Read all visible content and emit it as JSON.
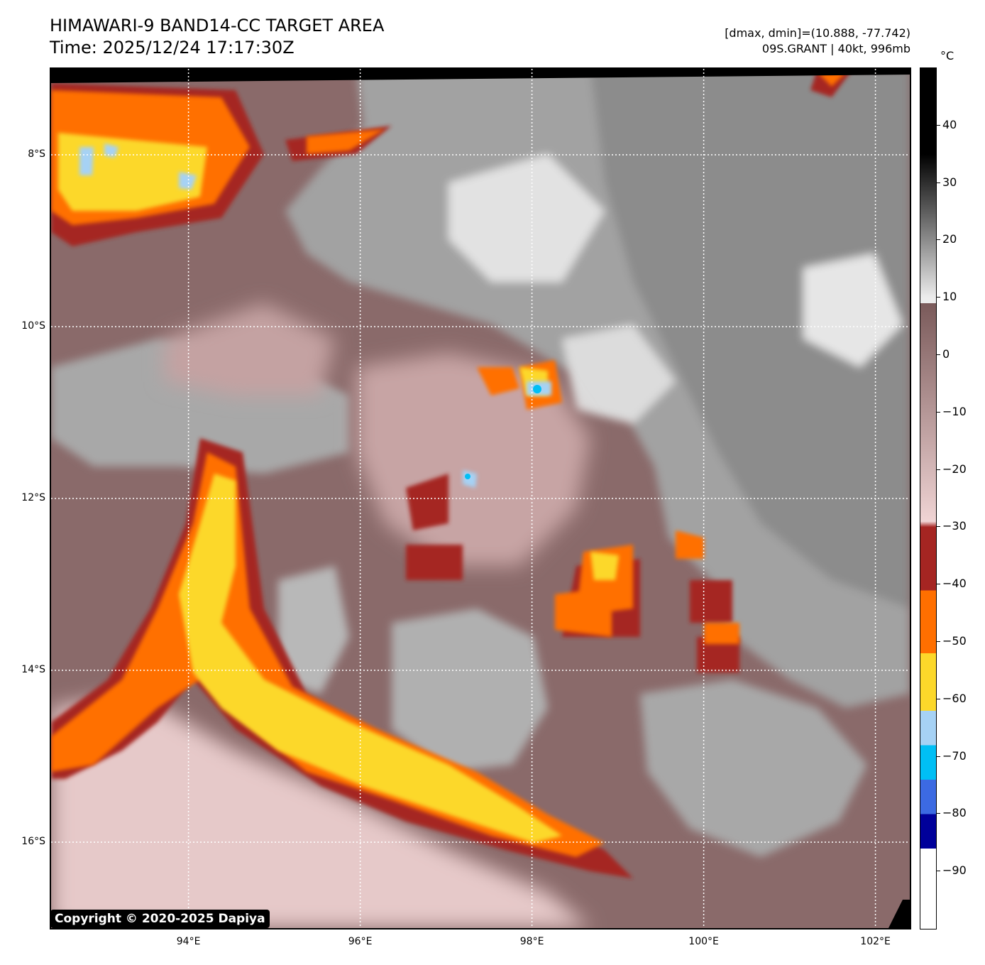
{
  "header": {
    "title": "HIMAWARI-9 BAND14-CC TARGET AREA",
    "time": "Time: 2025/12/24 17:17:30Z",
    "stats": "[dmax, dmin]=(10.888, -77.742)",
    "storm": "09S.GRANT | 40kt, 996mb"
  },
  "map": {
    "lat_labels": [
      "8°S",
      "10°S",
      "12°S",
      "14°S",
      "16°S"
    ],
    "lon_labels": [
      "94°E",
      "96°E",
      "98°E",
      "100°E",
      "102°E"
    ],
    "lat_range": [
      -17.0,
      -7.0
    ],
    "lon_range": [
      92.4,
      102.4
    ],
    "gridlines": "dotted white",
    "copyright": "Copyright © 2020-2025 Dapiya"
  },
  "colorbar": {
    "unit": "°C",
    "tick_labels": [
      "40",
      "30",
      "20",
      "10",
      "0",
      "−10",
      "−20",
      "−30",
      "−40",
      "−50",
      "−60",
      "−70",
      "−80",
      "−90"
    ],
    "tick_values": [
      40,
      30,
      20,
      10,
      0,
      -10,
      -20,
      -30,
      -40,
      -50,
      -60,
      -70,
      -80,
      -90
    ],
    "range": [
      -100,
      50
    ],
    "colors": {
      "warm_black": "#000000",
      "gray_mid": "#8c8c8c",
      "gray_light": "#ececec",
      "brown_warm": "#7a5a5a",
      "pink_cold": "#f0d4d4",
      "red": "#a52522",
      "orange": "#ff6f00",
      "yellow": "#fcd82a",
      "light_blue": "#a6d2f5",
      "cyan": "#00bff5",
      "royal_blue": "#3c6ae2",
      "navy": "#00009a",
      "white": "#ffffff"
    }
  }
}
